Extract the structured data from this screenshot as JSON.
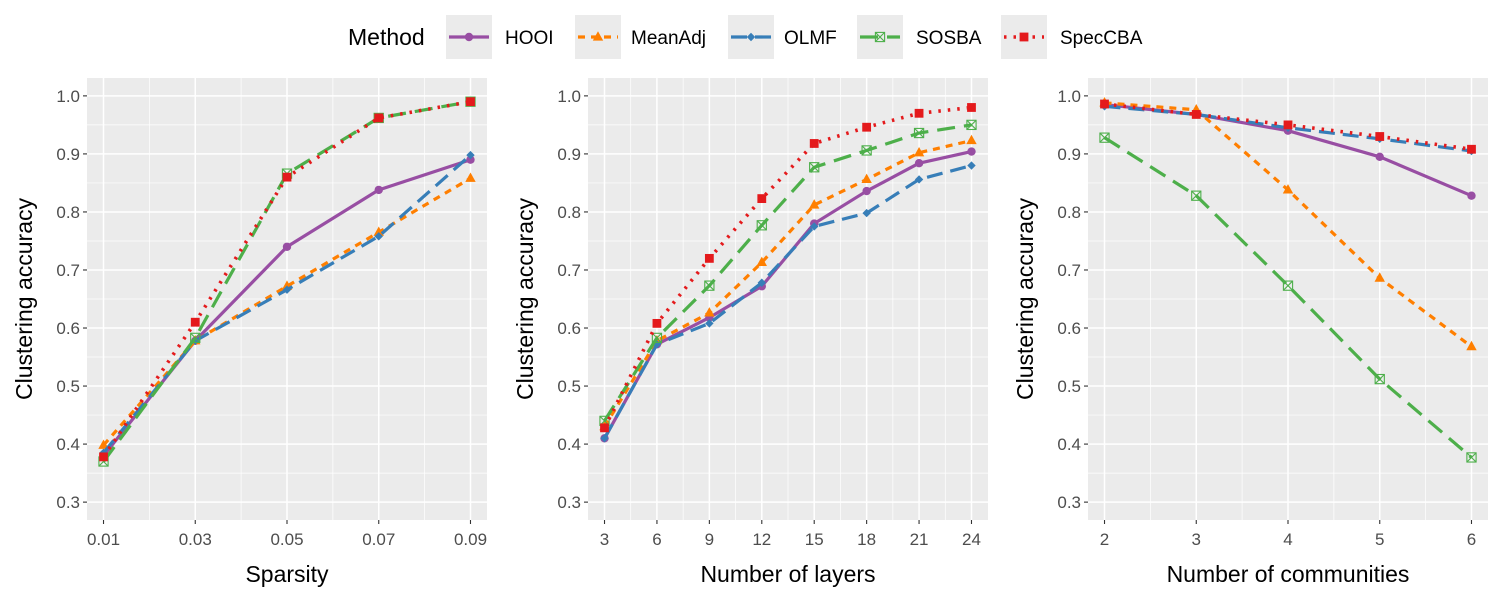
{
  "legend": {
    "title": "Method",
    "entries": [
      "HOOI",
      "MeanAdj",
      "OLMF",
      "SOSBA",
      "SpecCBA"
    ]
  },
  "colors": {
    "panel_background": "#ebebeb",
    "grid": "#ffffff",
    "HOOI": "#984ea3",
    "MeanAdj": "#ff7f00",
    "OLMF": "#377eb8",
    "SOSBA": "#4daf4a",
    "SpecCBA": "#e41a1c"
  },
  "chart_data": [
    {
      "type": "line",
      "xlabel": "Sparsity",
      "ylabel": "Clustering accuracy",
      "x": [
        0.01,
        0.03,
        0.05,
        0.07,
        0.09
      ],
      "x_tick_labels": [
        "0.01",
        "0.03",
        "0.05",
        "0.07",
        "0.09"
      ],
      "xlim": [
        0.01,
        0.09
      ],
      "ylim": [
        0.3,
        1.0
      ],
      "y_ticks": [
        "0.3",
        "0.4",
        "0.5",
        "0.6",
        "0.7",
        "0.8",
        "0.9",
        "1.0"
      ],
      "grid": true,
      "series": [
        {
          "name": "HOOI",
          "values": [
            0.38,
            0.578,
            0.74,
            0.838,
            0.89
          ]
        },
        {
          "name": "MeanAdj",
          "values": [
            0.398,
            0.578,
            0.672,
            0.765,
            0.858
          ]
        },
        {
          "name": "OLMF",
          "values": [
            0.385,
            0.578,
            0.666,
            0.758,
            0.898
          ]
        },
        {
          "name": "SOSBA",
          "values": [
            0.37,
            0.583,
            0.866,
            0.962,
            0.99
          ]
        },
        {
          "name": "SpecCBA",
          "values": [
            0.378,
            0.61,
            0.86,
            0.962,
            0.99
          ]
        }
      ]
    },
    {
      "type": "line",
      "xlabel": "Number of layers",
      "ylabel": "Clustering accuracy",
      "x": [
        3,
        6,
        9,
        12,
        15,
        18,
        21,
        24
      ],
      "x_tick_labels": [
        "3",
        "6",
        "9",
        "12",
        "15",
        "18",
        "21",
        "24"
      ],
      "xlim": [
        3,
        24
      ],
      "ylim": [
        0.3,
        1.0
      ],
      "y_ticks": [
        "0.3",
        "0.4",
        "0.5",
        "0.6",
        "0.7",
        "0.8",
        "0.9",
        "1.0"
      ],
      "grid": true,
      "series": [
        {
          "name": "HOOI",
          "values": [
            0.41,
            0.572,
            0.618,
            0.672,
            0.78,
            0.836,
            0.884,
            0.904
          ]
        },
        {
          "name": "MeanAdj",
          "values": [
            0.43,
            0.578,
            0.626,
            0.713,
            0.812,
            0.856,
            0.902,
            0.923
          ]
        },
        {
          "name": "OLMF",
          "values": [
            0.41,
            0.572,
            0.608,
            0.678,
            0.775,
            0.798,
            0.856,
            0.88
          ]
        },
        {
          "name": "SOSBA",
          "values": [
            0.44,
            0.583,
            0.673,
            0.777,
            0.877,
            0.906,
            0.936,
            0.95
          ]
        },
        {
          "name": "SpecCBA",
          "values": [
            0.428,
            0.608,
            0.72,
            0.823,
            0.918,
            0.946,
            0.97,
            0.98
          ]
        }
      ]
    },
    {
      "type": "line",
      "xlabel": "Number of communities",
      "ylabel": "Clustering accuracy",
      "x": [
        2,
        3,
        4,
        5,
        6
      ],
      "x_tick_labels": [
        "2",
        "3",
        "4",
        "5",
        "6"
      ],
      "xlim": [
        2,
        6
      ],
      "ylim": [
        0.3,
        1.0
      ],
      "y_ticks": [
        "0.3",
        "0.4",
        "0.5",
        "0.6",
        "0.7",
        "0.8",
        "0.9",
        "1.0"
      ],
      "grid": true,
      "series": [
        {
          "name": "HOOI",
          "values": [
            0.985,
            0.968,
            0.94,
            0.895,
            0.828
          ]
        },
        {
          "name": "MeanAdj",
          "values": [
            0.988,
            0.976,
            0.838,
            0.686,
            0.568
          ]
        },
        {
          "name": "OLMF",
          "values": [
            0.982,
            0.968,
            0.945,
            0.926,
            0.905
          ]
        },
        {
          "name": "SOSBA",
          "values": [
            0.928,
            0.828,
            0.673,
            0.512,
            0.377
          ]
        },
        {
          "name": "SpecCBA",
          "values": [
            0.986,
            0.968,
            0.95,
            0.93,
            0.908
          ]
        }
      ]
    }
  ]
}
